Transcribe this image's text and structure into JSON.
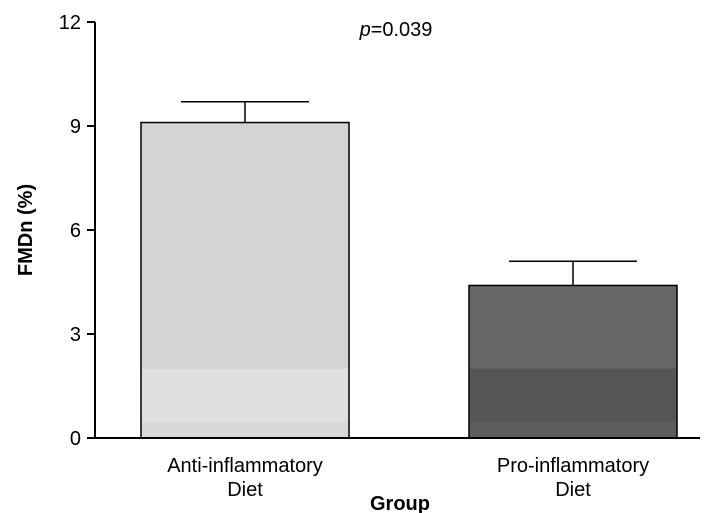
{
  "chart_data": {
    "type": "bar",
    "categories": [
      [
        "Anti-inflammatory",
        "Diet"
      ],
      [
        "Pro-inflammatory",
        "Diet"
      ]
    ],
    "values": [
      9.1,
      4.4
    ],
    "error_upper": [
      9.7,
      5.1
    ],
    "bar_colors": [
      "#d4d4d4",
      "#666666"
    ],
    "xlabel": "Group",
    "ylabel": "FMDn  (%)",
    "ylim": [
      0,
      12
    ],
    "yticks": [
      "0",
      "3",
      "6",
      "9",
      "12"
    ],
    "annotation": {
      "italic": "p",
      "text": "=0.039"
    },
    "grid": false,
    "legend": "none"
  }
}
